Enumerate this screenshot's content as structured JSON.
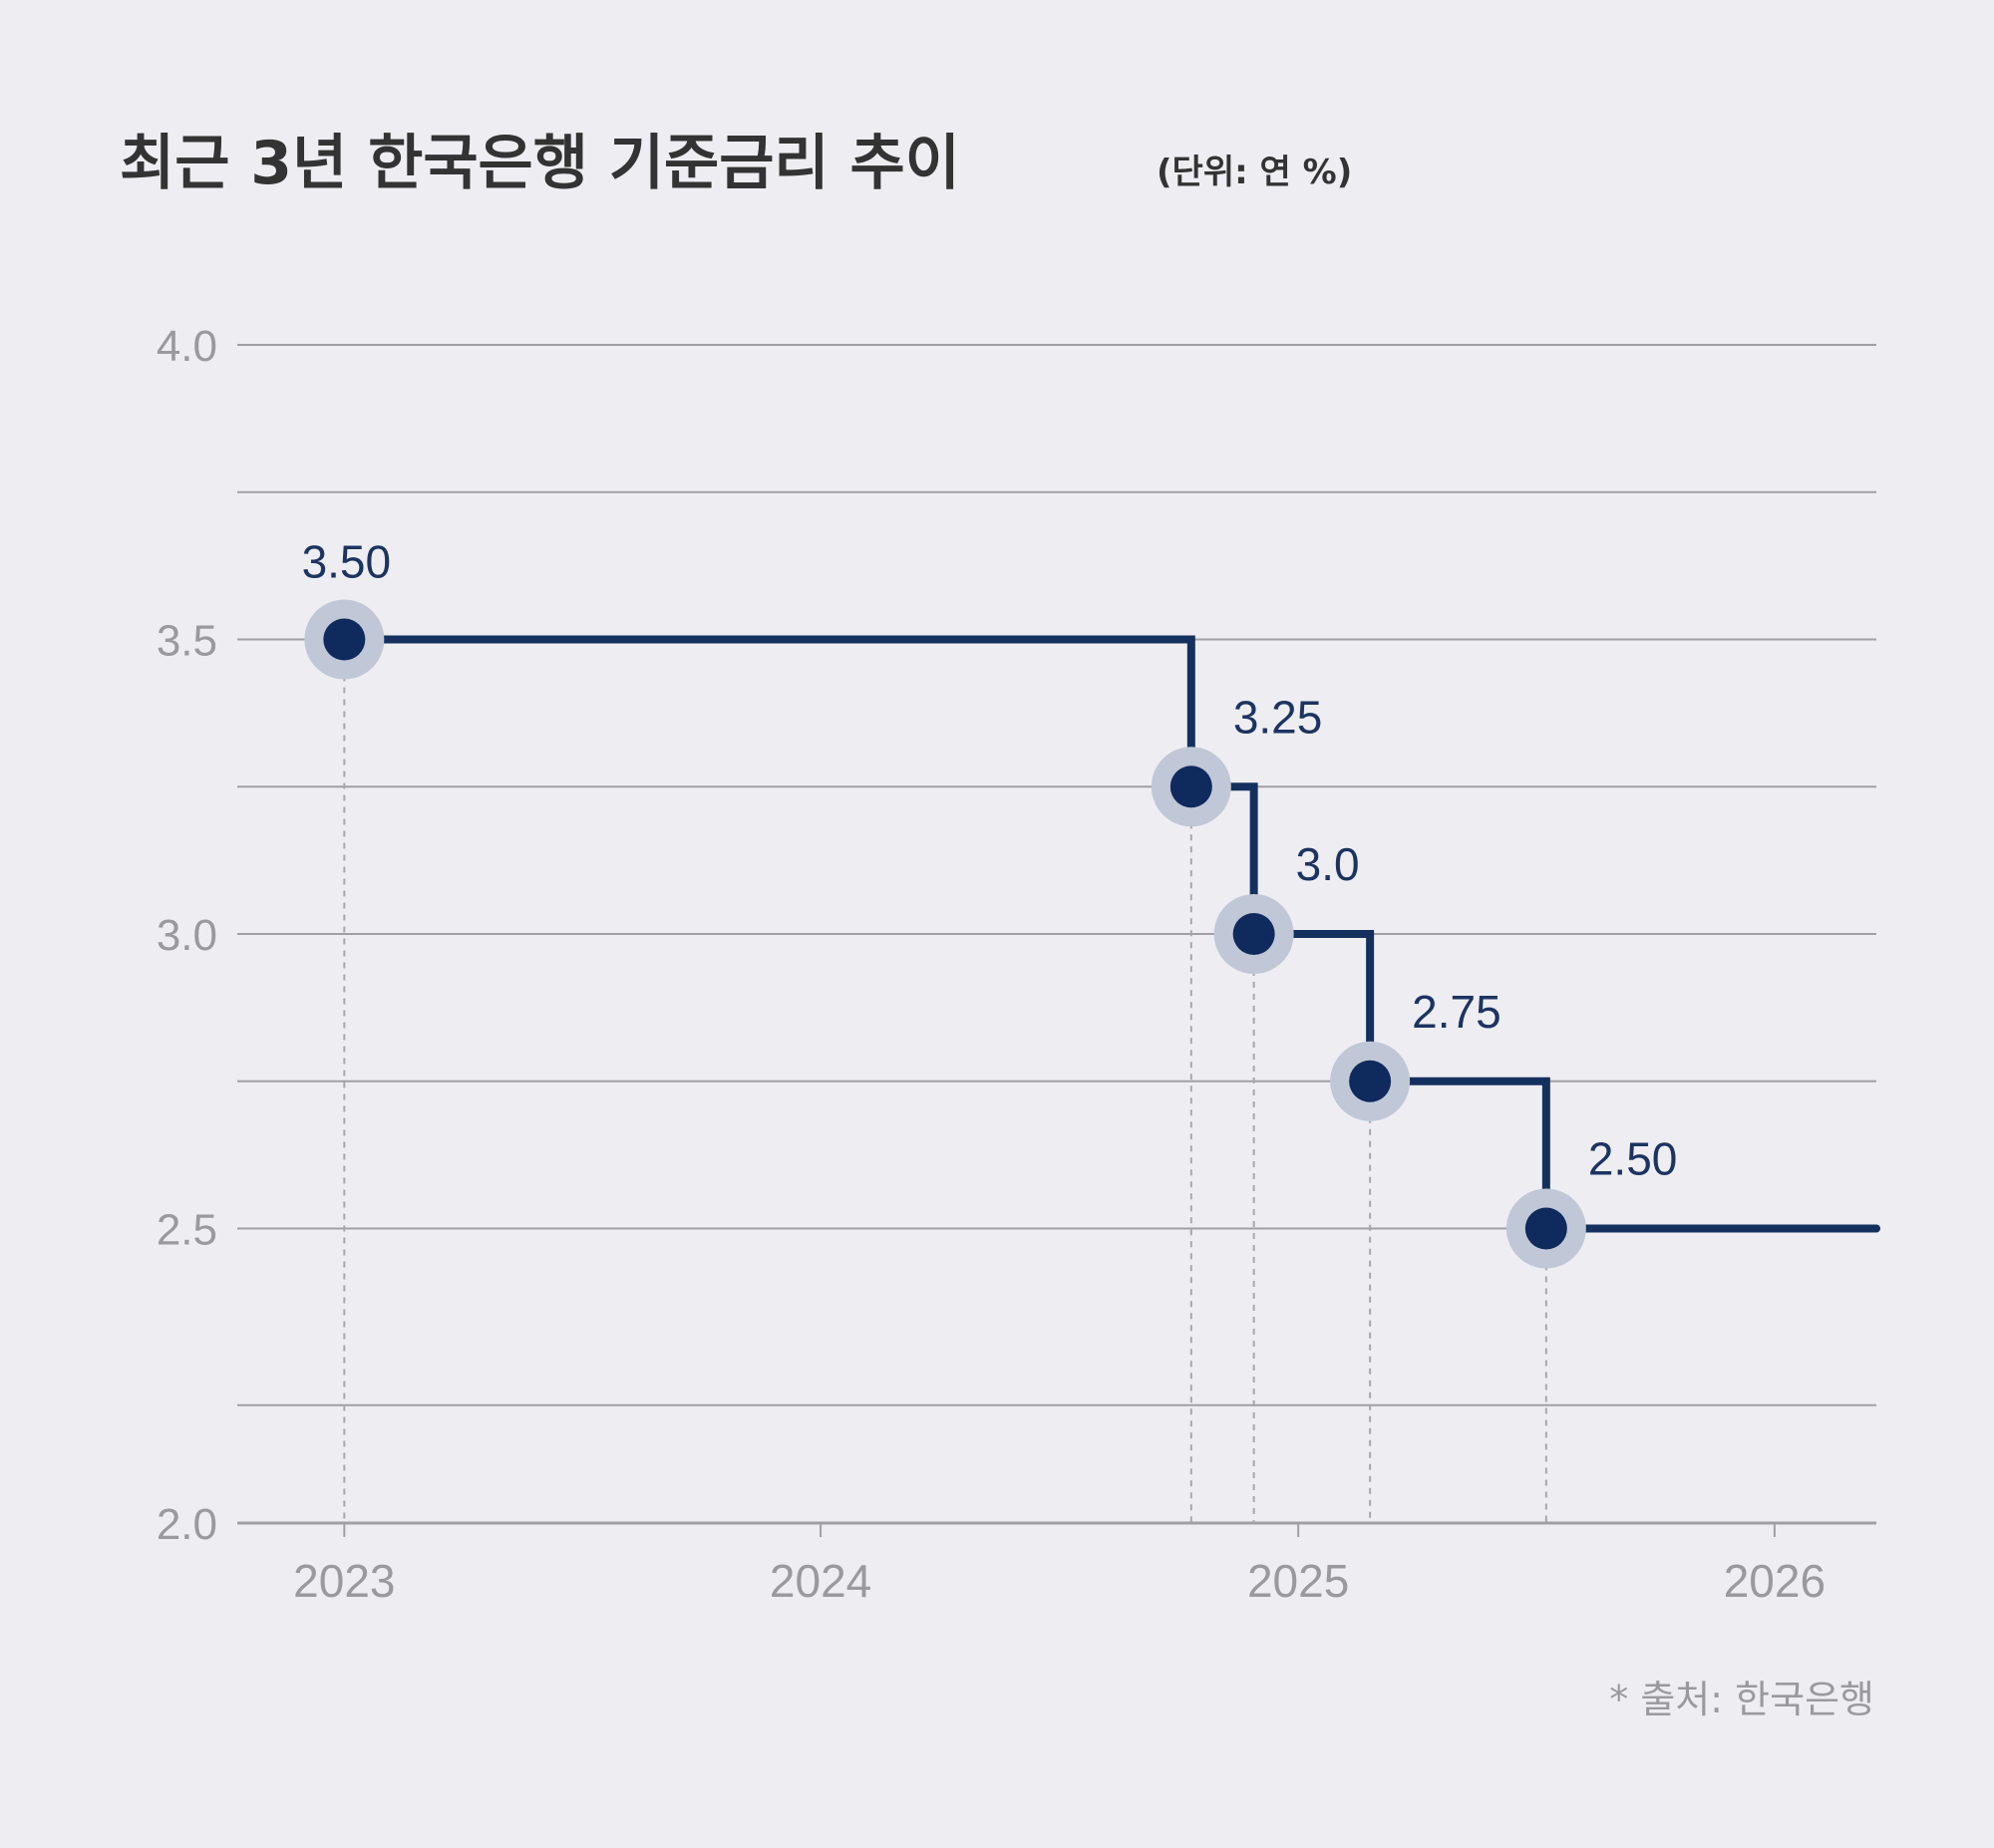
{
  "chart_data": {
    "type": "line",
    "step": true,
    "title": "최근 3년 한국은행 기준금리 추이",
    "unit_note": "(단위: 연 %)",
    "source_note": "* 출처: 한국은행",
    "ylim": [
      2.0,
      4.0
    ],
    "y_ticks": [
      {
        "value": 4.0,
        "label": "4.0"
      },
      {
        "value": 3.75,
        "label": ""
      },
      {
        "value": 3.5,
        "label": "3.5"
      },
      {
        "value": 3.25,
        "label": ""
      },
      {
        "value": 3.0,
        "label": "3.0"
      },
      {
        "value": 2.75,
        "label": ""
      },
      {
        "value": 2.5,
        "label": "2.5"
      },
      {
        "value": 2.2,
        "label": ""
      },
      {
        "value": 2.0,
        "label": "2.0"
      }
    ],
    "xlim": [
      "2022-10-11",
      "2026-03-20"
    ],
    "x_ticks": [
      {
        "value": "2023-01-01",
        "label": "2023"
      },
      {
        "value": "2024-01-01",
        "label": "2024"
      },
      {
        "value": "2025-01-01",
        "label": "2025"
      },
      {
        "value": "2026-01-01",
        "label": "2026"
      }
    ],
    "series": [
      {
        "points": [
          {
            "x": "2023-01-01",
            "y": 3.5,
            "label": "3.50"
          },
          {
            "x": "2024-10-11",
            "y": 3.25,
            "label": "3.25"
          },
          {
            "x": "2024-11-28",
            "y": 3.0,
            "label": "3.0"
          },
          {
            "x": "2025-02-25",
            "y": 2.75,
            "label": "2.75"
          },
          {
            "x": "2025-07-10",
            "y": 2.5,
            "label": "2.50"
          }
        ],
        "end_x": "2026-03-20"
      }
    ],
    "grid": true,
    "colors": {
      "line": "#14305e",
      "marker": "#0f2a5c",
      "marker_halo": "#c0c8d7",
      "label": "#1c3461",
      "grid": "#a0a0a4",
      "tick": "#9a9a9e",
      "guide": "#a6a6ae",
      "title": "#333333",
      "background": "#eeeef2"
    }
  }
}
